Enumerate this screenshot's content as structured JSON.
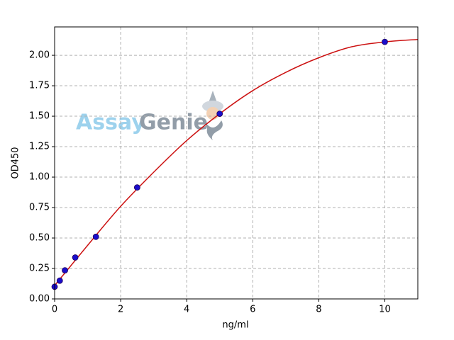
{
  "chart_data": {
    "type": "scatter",
    "xlabel": "ng/ml",
    "ylabel": "OD450",
    "watermark": [
      "Assay",
      "Genie"
    ],
    "xlim": [
      0,
      11
    ],
    "xticks": [
      0,
      2,
      4,
      6,
      8,
      10
    ],
    "ylim": [
      0,
      2.233
    ],
    "yticks": [
      {
        "value": 0,
        "label": "0.00"
      },
      {
        "value": 0.25,
        "label": "0.25"
      },
      {
        "value": 0.5,
        "label": "0.50"
      },
      {
        "value": 0.75,
        "label": "0.75"
      },
      {
        "value": 1,
        "label": "1.00"
      },
      {
        "value": 1.25,
        "label": "1.25"
      },
      {
        "value": 1.5,
        "label": "1.50"
      },
      {
        "value": 1.75,
        "label": "1.75"
      },
      {
        "value": 2,
        "label": "2.00"
      }
    ],
    "grid": true,
    "series": [
      {
        "type": "line",
        "color": "#cc1111",
        "x": [
          0,
          1,
          2,
          3,
          4,
          5,
          6,
          7,
          8,
          9,
          10,
          11
        ],
        "values": [
          0.11,
          0.44,
          0.76,
          1.04,
          1.3,
          1.52,
          1.71,
          1.86,
          1.98,
          2.07,
          2.11,
          2.13
        ]
      },
      {
        "type": "scatter",
        "color": "#1a0dcc",
        "x": [
          0,
          0.156,
          0.3125,
          0.625,
          1.25,
          2.5,
          5,
          10
        ],
        "values": [
          0.1,
          0.15,
          0.235,
          0.34,
          0.51,
          0.915,
          1.52,
          2.11
        ]
      }
    ]
  }
}
